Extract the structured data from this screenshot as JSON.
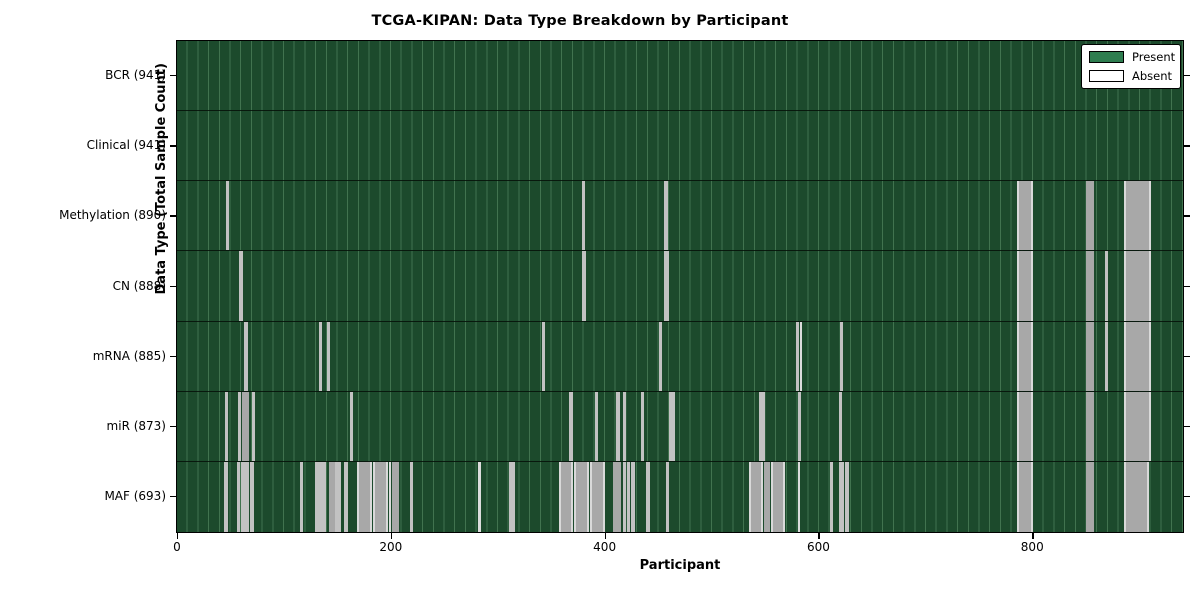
{
  "title": "TCGA-KIPAN: Data Type Breakdown by Participant",
  "axes": {
    "xlabel": "Participant",
    "ylabel": "Data Type (Total Sample Count)",
    "x_ticks": [
      0,
      200,
      400,
      600,
      800
    ],
    "x_range": [
      0,
      941
    ]
  },
  "legend": {
    "present_label": "Present",
    "absent_label": "Absent"
  },
  "colors": {
    "present_fill": "#1c4a2c",
    "legend_present_fill": "#2e7d4f",
    "absent_wide_fill": "#a8a8a8",
    "absent_medium_fill": "#c2c2c2",
    "absent_thin_fill": "#dcdcdc",
    "grid_line": "rgba(150,210,160,0.30)",
    "row_separator": "#0a150d"
  },
  "chart_data": {
    "type": "heatmap",
    "title": "TCGA-KIPAN: Data Type Breakdown by Participant",
    "xlabel": "Participant",
    "ylabel": "Data Type (Total Sample Count)",
    "x_range": [
      0,
      941
    ],
    "x_ticks": [
      0,
      200,
      400,
      600,
      800
    ],
    "legend_entries": [
      "Present",
      "Absent"
    ],
    "legend_position": "upper right",
    "rows": [
      {
        "label": "BCR (941)",
        "data_type": "BCR",
        "total_samples": 941,
        "absent_segments": []
      },
      {
        "label": "Clinical (941)",
        "data_type": "Clinical",
        "total_samples": 941,
        "absent_segments": []
      },
      {
        "label": "Methylation (890)",
        "data_type": "Methylation",
        "total_samples": 890,
        "absent_segments": [
          [
            46,
            48
          ],
          [
            379,
            381
          ],
          [
            456,
            458
          ],
          [
            786,
            800
          ],
          [
            850,
            857
          ],
          [
            886,
            910
          ]
        ]
      },
      {
        "label": "CN (888)",
        "data_type": "CN",
        "total_samples": 888,
        "absent_segments": [
          [
            58,
            61
          ],
          [
            379,
            382
          ],
          [
            456,
            459
          ],
          [
            786,
            800
          ],
          [
            850,
            857
          ],
          [
            868,
            870
          ],
          [
            886,
            910
          ]
        ]
      },
      {
        "label": "mRNA (885)",
        "data_type": "mRNA",
        "total_samples": 885,
        "absent_segments": [
          [
            63,
            65
          ],
          [
            133,
            135
          ],
          [
            140,
            142
          ],
          [
            341,
            343
          ],
          [
            451,
            453
          ],
          [
            579,
            581
          ],
          [
            583,
            584
          ],
          [
            620,
            622
          ],
          [
            786,
            800
          ],
          [
            850,
            857
          ],
          [
            868,
            870
          ],
          [
            886,
            910
          ]
        ]
      },
      {
        "label": "miR (873)",
        "data_type": "miR",
        "total_samples": 873,
        "absent_segments": [
          [
            45,
            47
          ],
          [
            57,
            59
          ],
          [
            61,
            66
          ],
          [
            70,
            72
          ],
          [
            162,
            164
          ],
          [
            367,
            369
          ],
          [
            391,
            393
          ],
          [
            411,
            413
          ],
          [
            417,
            419
          ],
          [
            434,
            436
          ],
          [
            460,
            462
          ],
          [
            463,
            465
          ],
          [
            544,
            546
          ],
          [
            547,
            549
          ],
          [
            581,
            583
          ],
          [
            619,
            621
          ],
          [
            786,
            800
          ],
          [
            850,
            857
          ],
          [
            886,
            910
          ]
        ]
      },
      {
        "label": "MAF (693)",
        "data_type": "MAF",
        "total_samples": 693,
        "absent_segments": [
          [
            44,
            47
          ],
          [
            56,
            58
          ],
          [
            60,
            62
          ],
          [
            63,
            66
          ],
          [
            68,
            71
          ],
          [
            115,
            117
          ],
          [
            129,
            133
          ],
          [
            134,
            138
          ],
          [
            142,
            147
          ],
          [
            148,
            152
          ],
          [
            156,
            159
          ],
          [
            168,
            181
          ],
          [
            183,
            196
          ],
          [
            198,
            199
          ],
          [
            201,
            207
          ],
          [
            218,
            220
          ],
          [
            282,
            283
          ],
          [
            311,
            315
          ],
          [
            357,
            369
          ],
          [
            371,
            384
          ],
          [
            386,
            399
          ],
          [
            408,
            414
          ],
          [
            417,
            419
          ],
          [
            421,
            423
          ],
          [
            425,
            427
          ],
          [
            439,
            441
          ],
          [
            457,
            459
          ],
          [
            535,
            547
          ],
          [
            549,
            554
          ],
          [
            556,
            568
          ],
          [
            581,
            582
          ],
          [
            611,
            613
          ],
          [
            619,
            623
          ],
          [
            625,
            628
          ],
          [
            786,
            800
          ],
          [
            850,
            857
          ],
          [
            886,
            908
          ]
        ]
      }
    ]
  }
}
